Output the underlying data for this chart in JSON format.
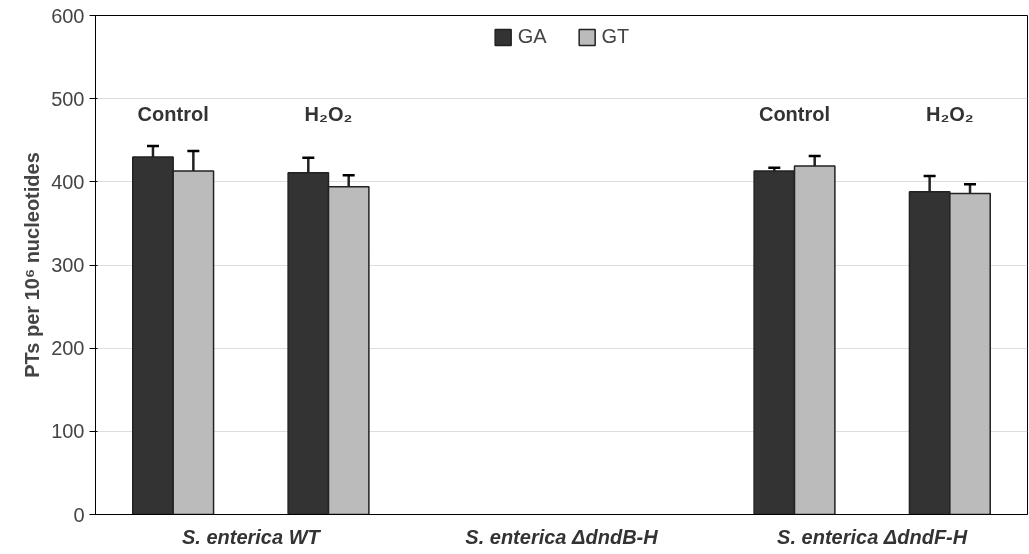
{
  "chart_data": {
    "type": "bar",
    "ylabel": "PTs per 10⁶ nucleotides",
    "categories": [
      "Control",
      "H₂O₂",
      null,
      null,
      "Control",
      "H₂O₂"
    ],
    "series": [
      {
        "name": "GA",
        "color": "#333333",
        "values": [
          430,
          411,
          0,
          0,
          413,
          388
        ],
        "errors": [
          13,
          18,
          null,
          null,
          4,
          19
        ]
      },
      {
        "name": "GT",
        "color": "#bbbbbb",
        "values": [
          413,
          394,
          0,
          0,
          419,
          386
        ],
        "errors": [
          24,
          14,
          null,
          null,
          12,
          11
        ]
      }
    ],
    "annotations": [
      "S. enterica WT",
      "S. enterica ΔdndB-H",
      "S. enterica ΔdndF-H"
    ],
    "ylim": [
      0,
      600
    ],
    "yticks": [
      0,
      100,
      200,
      300,
      400,
      500,
      600
    ],
    "grid": "y",
    "legend": "top"
  }
}
